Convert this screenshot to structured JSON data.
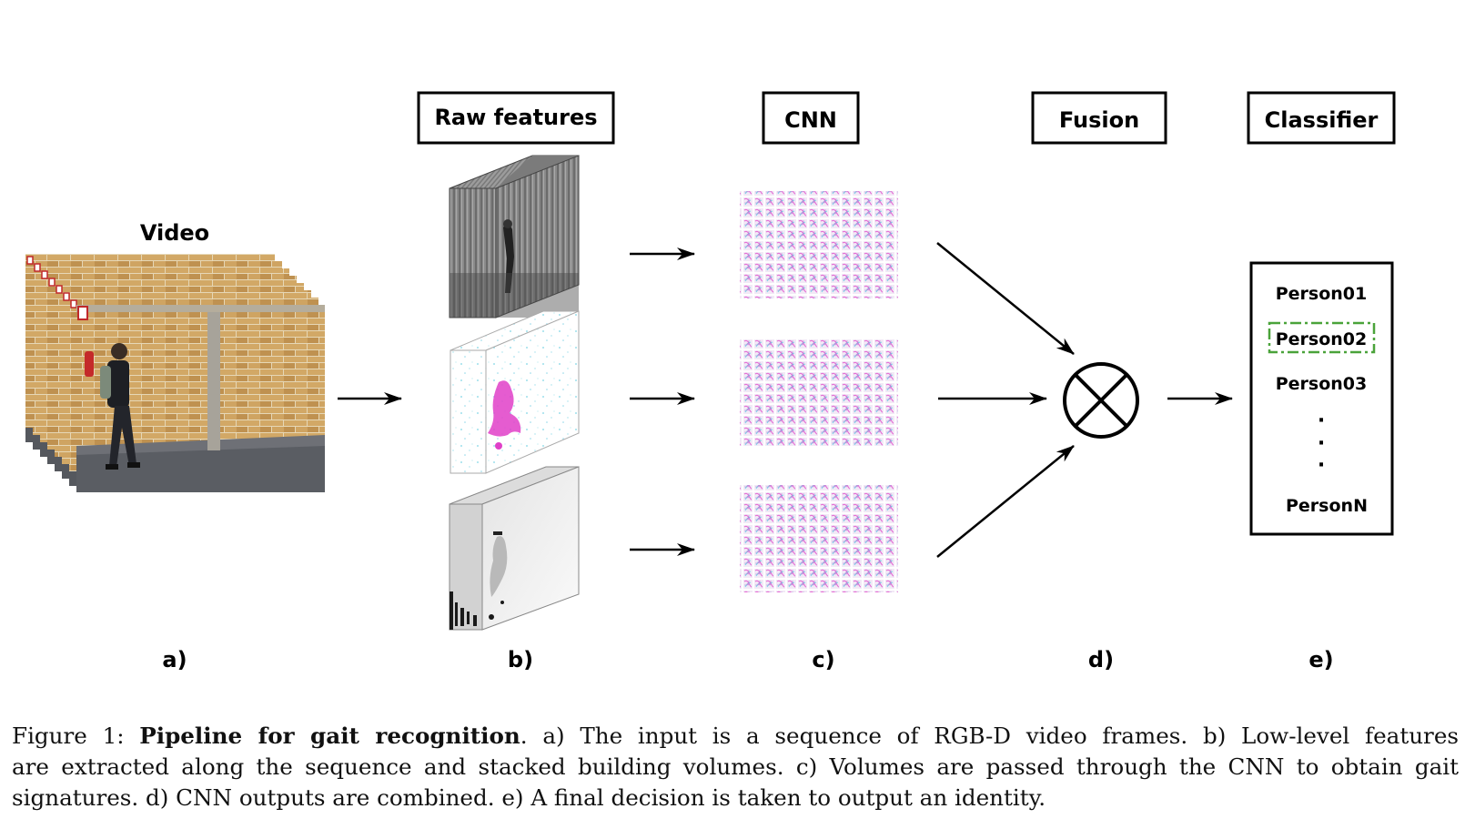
{
  "stages": {
    "video": "Video",
    "raw_features": "Raw features",
    "cnn": "CNN",
    "fusion": "Fusion",
    "classifier": "Classifier"
  },
  "panel_labels": [
    "a)",
    "b)",
    "c)",
    "d)",
    "e)"
  ],
  "classifier": {
    "items": [
      "Person01",
      "Person02",
      "Person03",
      "PersonN"
    ],
    "ellipsis": "·",
    "selected_index": 1,
    "highlight_color": "#4aa33a"
  },
  "caption": {
    "prefix": "Figure 1: ",
    "title": "Pipeline for gait recognition",
    "line1_rest": ". a) The input is a sequence of RGB-D video frames. b) Low-level features",
    "line2": "are extracted along the sequence and stacked building volumes. c) Volumes are passed through the CNN to obtain gait",
    "line3": "signatures. d) CNN outputs are combined. e) A final decision is taken to output an identity."
  },
  "colors": {
    "brick": "#c79a55",
    "floor": "#5a5d63",
    "pillar": "#a7a39a",
    "filter_magenta": "#e040c8",
    "filter_cyan": "#5fd4e6"
  }
}
